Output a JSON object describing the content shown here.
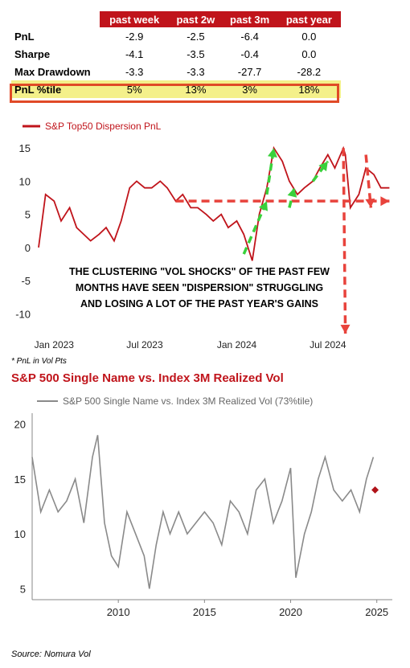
{
  "table": {
    "headers": [
      "past week",
      "past 2w",
      "past 3m",
      "past year"
    ],
    "rows": [
      {
        "metric": "PnL",
        "values": [
          "-2.9",
          "-2.5",
          "-6.4",
          "0.0"
        ]
      },
      {
        "metric": "Sharpe",
        "values": [
          "-4.1",
          "-3.5",
          "-0.4",
          "0.0"
        ]
      },
      {
        "metric": "Max Drawdown",
        "values": [
          "-3.3",
          "-3.3",
          "-27.7",
          "-28.2"
        ]
      },
      {
        "metric": "PnL %tile",
        "values": [
          "5%",
          "13%",
          "3%",
          "18%"
        ],
        "highlight": true
      }
    ]
  },
  "footnote": "* PnL in Vol Pts",
  "section_title": "S&P 500 Single Name vs. Index 3M Realized Vol",
  "source": "Source: Nomura Vol",
  "colors": {
    "red": "#c0141b",
    "dashed_red": "#e8433c",
    "green": "#39d13b",
    "gray": "#8a8a8a",
    "highlight_fill": "#f4f08a",
    "highlight_border": "#e04a27"
  },
  "chart_data": [
    {
      "type": "line",
      "legend": "S&P Top50 Dispersion PnL",
      "xticks": [
        "Jan 2023",
        "Jul 2023",
        "Jan 2024",
        "Jul 2024"
      ],
      "yticks": [
        15,
        10,
        5,
        0,
        -5,
        -10
      ],
      "ylim": [
        -13,
        16
      ],
      "x": [
        "2022-12-01",
        "2022-12-15",
        "2023-01-01",
        "2023-01-15",
        "2023-02-01",
        "2023-02-15",
        "2023-03-01",
        "2023-03-15",
        "2023-04-01",
        "2023-04-15",
        "2023-05-01",
        "2023-05-15",
        "2023-06-01",
        "2023-06-15",
        "2023-07-01",
        "2023-07-15",
        "2023-08-01",
        "2023-08-15",
        "2023-09-01",
        "2023-09-15",
        "2023-10-01",
        "2023-10-15",
        "2023-11-01",
        "2023-11-15",
        "2023-12-01",
        "2023-12-15",
        "2024-01-01",
        "2024-01-15",
        "2024-02-01",
        "2024-02-15",
        "2024-03-01",
        "2024-03-15",
        "2024-04-01",
        "2024-04-15",
        "2024-05-01",
        "2024-05-15",
        "2024-06-01",
        "2024-06-15",
        "2024-07-01",
        "2024-07-15",
        "2024-08-01",
        "2024-08-05",
        "2024-08-15",
        "2024-09-01",
        "2024-09-15",
        "2024-10-01",
        "2024-10-15",
        "2024-11-01"
      ],
      "y": [
        0,
        8,
        7,
        4,
        6,
        3,
        2,
        1,
        2,
        3,
        1,
        4,
        9,
        10,
        9,
        9,
        10,
        9,
        7,
        8,
        6,
        6,
        5,
        4,
        5,
        3,
        4,
        2,
        -2,
        5,
        9,
        15,
        13,
        10,
        8,
        9,
        10,
        12,
        14,
        12,
        15,
        14,
        6,
        8,
        12,
        11,
        9,
        9
      ],
      "dashed_red": [
        {
          "from": [
            "2023-09-01",
            7
          ],
          "to": [
            "2024-11-01",
            7
          ]
        },
        {
          "from": [
            "2024-08-01",
            15
          ],
          "to": [
            "2024-08-05",
            -13
          ]
        },
        {
          "from": [
            "2024-09-15",
            14
          ],
          "to": [
            "2024-09-25",
            6
          ]
        }
      ],
      "green_arrows": [
        {
          "from": [
            "2024-01-15",
            -1
          ],
          "to": [
            "2024-03-01",
            7
          ]
        },
        {
          "from": [
            "2024-03-01",
            8
          ],
          "to": [
            "2024-03-15",
            15
          ]
        },
        {
          "from": [
            "2024-04-15",
            6
          ],
          "to": [
            "2024-04-25",
            9
          ]
        },
        {
          "from": [
            "2024-06-01",
            10
          ],
          "to": [
            "2024-07-01",
            13
          ]
        }
      ],
      "annotation": [
        "THE CLUSTERING \"VOL SHOCKS\" OF THE PAST FEW",
        "MONTHS HAVE SEEN \"DISPERSION\" STRUGGLING",
        "AND LOSING A LOT OF THE PAST YEAR'S GAINS"
      ]
    },
    {
      "type": "line",
      "legend": "S&P 500 Single Name vs. Index 3M Realized Vol (73%tile)",
      "xticks": [
        "2010",
        "2015",
        "2020",
        "2025"
      ],
      "yticks": [
        20,
        15,
        10,
        5
      ],
      "ylim": [
        4,
        21
      ],
      "x": [
        2005.0,
        2005.5,
        2006.0,
        2006.5,
        2007.0,
        2007.5,
        2008.0,
        2008.5,
        2008.8,
        2009.2,
        2009.6,
        2010.0,
        2010.5,
        2011.0,
        2011.5,
        2011.8,
        2012.2,
        2012.6,
        2013.0,
        2013.5,
        2014.0,
        2014.5,
        2015.0,
        2015.5,
        2016.0,
        2016.5,
        2017.0,
        2017.5,
        2018.0,
        2018.5,
        2019.0,
        2019.5,
        2020.0,
        2020.3,
        2020.8,
        2021.2,
        2021.6,
        2022.0,
        2022.5,
        2023.0,
        2023.5,
        2024.0,
        2024.4,
        2024.8
      ],
      "y": [
        17,
        12,
        14,
        12,
        13,
        15,
        11,
        17,
        19,
        11,
        8,
        7,
        12,
        10,
        8,
        5,
        9,
        12,
        10,
        12,
        10,
        11,
        12,
        11,
        9,
        13,
        12,
        10,
        14,
        15,
        11,
        13,
        16,
        6,
        10,
        12,
        15,
        17,
        14,
        13,
        14,
        12,
        15,
        17
      ],
      "last_marker": {
        "x": 2024.9,
        "y": 14
      }
    }
  ]
}
